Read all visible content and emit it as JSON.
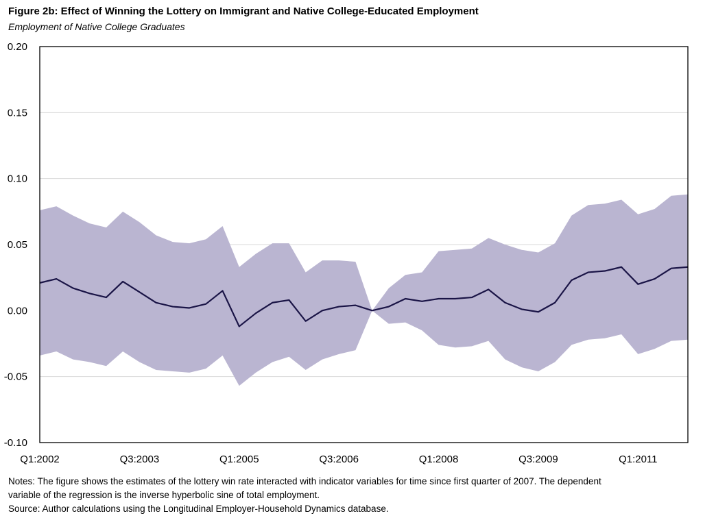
{
  "title": "Figure 2b: Effect of Winning the Lottery on Immigrant and Native College-Educated Employment",
  "subtitle": "Employment of Native College Graduates",
  "notes": {
    "line1": "Notes: The figure shows the estimates of the lottery win rate interacted with indicator variables for time since first quarter of 2007.  The dependent",
    "line2": "variable of the regression is the inverse hyperbolic sine of total employment.",
    "line3": "Source: Author calculations using the Longitudinal Employer-Household Dynamics database."
  },
  "colors": {
    "line": "#1a1446",
    "band": "#bab5d1",
    "grid": "#d9d9d9",
    "frame": "#000000"
  },
  "chart_data": {
    "type": "line",
    "title": "Figure 2b: Effect of Winning the Lottery on Immigrant and Native College-Educated Employment",
    "subtitle": "Employment of Native College Graduates",
    "xlabel": "",
    "ylabel": "",
    "ylim": [
      -0.1,
      0.2
    ],
    "yticks": [
      0.2,
      0.15,
      0.1,
      0.05,
      0.0,
      -0.05,
      -0.1
    ],
    "ytick_labels": [
      "0.20",
      "0.15",
      "0.10",
      "0.05",
      "0.00",
      "-0.05",
      "-0.10"
    ],
    "x_tick_labels": [
      "Q1:2002",
      "Q3:2003",
      "Q1:2005",
      "Q3:2006",
      "Q1:2008",
      "Q3:2009",
      "Q1:2011"
    ],
    "x_tick_indices": [
      0,
      6,
      12,
      18,
      24,
      30,
      36
    ],
    "grid": true,
    "legend": "none",
    "quarters": [
      "Q1:2002",
      "Q2:2002",
      "Q3:2002",
      "Q4:2002",
      "Q1:2003",
      "Q2:2003",
      "Q3:2003",
      "Q4:2003",
      "Q1:2004",
      "Q2:2004",
      "Q3:2004",
      "Q4:2004",
      "Q1:2005",
      "Q2:2005",
      "Q3:2005",
      "Q4:2005",
      "Q1:2006",
      "Q2:2006",
      "Q3:2006",
      "Q4:2006",
      "Q1:2007",
      "Q2:2007",
      "Q3:2007",
      "Q4:2007",
      "Q1:2008",
      "Q2:2008",
      "Q3:2008",
      "Q4:2008",
      "Q1:2009",
      "Q2:2009",
      "Q3:2009",
      "Q4:2009",
      "Q1:2010",
      "Q2:2010",
      "Q3:2010",
      "Q4:2010",
      "Q1:2011",
      "Q2:2011",
      "Q3:2011",
      "Q4:2011"
    ],
    "series": [
      {
        "name": "Estimate",
        "values": [
          0.021,
          0.024,
          0.017,
          0.013,
          0.01,
          0.022,
          0.014,
          0.006,
          0.003,
          0.002,
          0.005,
          0.015,
          -0.012,
          -0.002,
          0.006,
          0.008,
          -0.008,
          0.0,
          0.003,
          0.004,
          0.0,
          0.003,
          0.009,
          0.007,
          0.009,
          0.009,
          0.01,
          0.016,
          0.006,
          0.001,
          -0.001,
          0.006,
          0.023,
          0.029,
          0.03,
          0.033,
          0.02,
          0.024,
          0.032,
          0.033
        ]
      },
      {
        "name": "Upper bound",
        "values": [
          0.076,
          0.079,
          0.072,
          0.066,
          0.063,
          0.075,
          0.067,
          0.057,
          0.052,
          0.051,
          0.054,
          0.064,
          0.033,
          0.043,
          0.051,
          0.051,
          0.029,
          0.038,
          0.038,
          0.037,
          0.0,
          0.017,
          0.027,
          0.029,
          0.045,
          0.046,
          0.047,
          0.055,
          0.05,
          0.046,
          0.044,
          0.051,
          0.072,
          0.08,
          0.081,
          0.084,
          0.073,
          0.077,
          0.087,
          0.088
        ]
      },
      {
        "name": "Lower bound",
        "values": [
          -0.034,
          -0.031,
          -0.037,
          -0.039,
          -0.042,
          -0.031,
          -0.039,
          -0.045,
          -0.046,
          -0.047,
          -0.044,
          -0.034,
          -0.057,
          -0.047,
          -0.039,
          -0.035,
          -0.045,
          -0.037,
          -0.033,
          -0.03,
          0.0,
          -0.01,
          -0.009,
          -0.015,
          -0.026,
          -0.028,
          -0.027,
          -0.023,
          -0.037,
          -0.043,
          -0.046,
          -0.039,
          -0.026,
          -0.022,
          -0.021,
          -0.018,
          -0.033,
          -0.029,
          -0.023,
          -0.022
        ]
      }
    ]
  }
}
